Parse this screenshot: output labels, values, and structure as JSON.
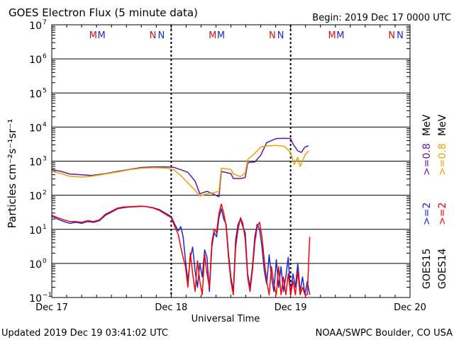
{
  "title": "GOES Electron Flux (5 minute data)",
  "begin_label": "Begin: 2019 Dec 17 0000 UTC",
  "updated_label": "Updated 2019 Dec 19 03:41:02 UTC",
  "credit": "NOAA/SWPC Boulder, CO USA",
  "colors": {
    "purple": "#5a1aa0",
    "orange": "#f0a000",
    "blue": "#1c28c8",
    "red": "#ff0000",
    "mm_red": "#d01010",
    "mm_blue": "#1c28c8"
  },
  "chart_data": {
    "type": "line",
    "xlabel": "Universal Time",
    "ylabel": "Particles cm⁻²s⁻¹sr⁻¹",
    "x_unit": "days since Dec 17 0000 UTC",
    "xlim": [
      0,
      3
    ],
    "ylim_log10": [
      -1,
      7
    ],
    "y_scale": "log",
    "x_ticks": [
      {
        "x": 0,
        "label": "Dec 17"
      },
      {
        "x": 1,
        "label": "Dec 18"
      },
      {
        "x": 2,
        "label": "Dec 19"
      },
      {
        "x": 3,
        "label": "Dec 20"
      }
    ],
    "y_ticks": [
      {
        "exp": -1,
        "label": "10",
        "sup": "−1"
      },
      {
        "exp": 0,
        "label": "10",
        "sup": "0"
      },
      {
        "exp": 1,
        "label": "10",
        "sup": "1"
      },
      {
        "exp": 2,
        "label": "10",
        "sup": "2"
      },
      {
        "exp": 3,
        "label": "10",
        "sup": "3"
      },
      {
        "exp": 4,
        "label": "10",
        "sup": "4"
      },
      {
        "exp": 5,
        "label": "10",
        "sup": "5"
      },
      {
        "exp": 6,
        "label": "10",
        "sup": "6"
      },
      {
        "exp": 7,
        "label": "10",
        "sup": "7"
      }
    ],
    "threshold_y": 1000,
    "markers": [
      {
        "text": "M",
        "x": 0.43,
        "color": "mm_red"
      },
      {
        "text": "M",
        "x": 0.5,
        "color": "mm_blue"
      },
      {
        "text": "N",
        "x": 0.93,
        "color": "mm_red"
      },
      {
        "text": "N",
        "x": 1.0,
        "color": "mm_blue"
      },
      {
        "text": "M",
        "x": 1.43,
        "color": "mm_red"
      },
      {
        "text": "M",
        "x": 1.5,
        "color": "mm_blue"
      },
      {
        "text": "N",
        "x": 1.93,
        "color": "mm_red"
      },
      {
        "text": "N",
        "x": 2.0,
        "color": "mm_blue"
      },
      {
        "text": "M",
        "x": 2.43,
        "color": "mm_red"
      },
      {
        "text": "M",
        "x": 2.5,
        "color": "mm_blue"
      },
      {
        "text": "N",
        "x": 2.93,
        "color": "mm_red"
      },
      {
        "text": "N",
        "x": 3.0,
        "color": "mm_blue"
      }
    ],
    "day_boundaries": [
      1,
      2
    ],
    "legend_right": [
      {
        "prefix": "GOES15",
        "label": ">=2",
        "color": "blue"
      },
      {
        "prefix": "",
        "label": ">=0.8 MeV",
        "color": "purple"
      },
      {
        "prefix": "GOES14",
        "label": ">=2",
        "color": "red"
      },
      {
        "prefix": "",
        "label": ">=0.8 MeV",
        "color": "orange"
      }
    ],
    "legend_text": {
      "g15": "GOES15",
      "g14": "GOES14",
      "g15_hi": ">=2",
      "g15_lo": ">=0.8",
      "g14_hi": ">=2",
      "g14_lo": ">=0.8",
      "mev": "MeV"
    },
    "series": [
      {
        "name": "GOES15 >=0.8 MeV",
        "color": "purple",
        "x": [
          0,
          0.08,
          0.15,
          0.25,
          0.33,
          0.45,
          0.55,
          0.65,
          0.75,
          0.85,
          0.95,
          1.02,
          1.08,
          1.14,
          1.2,
          1.24,
          1.3,
          1.36,
          1.4,
          1.42,
          1.5,
          1.52,
          1.58,
          1.62,
          1.64,
          1.7,
          1.75,
          1.8,
          1.88,
          1.95,
          2.0,
          2.02,
          2.06,
          2.09,
          2.12,
          2.15
        ],
        "y": [
          560,
          500,
          420,
          400,
          380,
          430,
          500,
          570,
          650,
          680,
          680,
          660,
          560,
          470,
          260,
          110,
          130,
          105,
          90,
          500,
          430,
          310,
          310,
          330,
          900,
          950,
          1500,
          3500,
          4600,
          4700,
          4600,
          3200,
          2000,
          1800,
          2600,
          2800
        ]
      },
      {
        "name": "GOES14 >=0.8 MeV",
        "color": "orange",
        "x": [
          0,
          0.08,
          0.15,
          0.25,
          0.33,
          0.45,
          0.55,
          0.65,
          0.75,
          0.85,
          0.95,
          1.02,
          1.08,
          1.14,
          1.2,
          1.24,
          1.3,
          1.36,
          1.4,
          1.42,
          1.5,
          1.52,
          1.58,
          1.62,
          1.64,
          1.7,
          1.75,
          1.8,
          1.88,
          1.95,
          2.0,
          2.03,
          2.06,
          2.08,
          2.12,
          2.15
        ],
        "y": [
          500,
          430,
          360,
          340,
          360,
          420,
          480,
          560,
          620,
          640,
          630,
          560,
          380,
          230,
          140,
          95,
          110,
          120,
          130,
          620,
          570,
          420,
          350,
          450,
          1100,
          1700,
          2600,
          2800,
          2900,
          2700,
          1800,
          800,
          1300,
          700,
          1500,
          2000
        ]
      },
      {
        "name": "GOES15 >=2 MeV",
        "color": "blue",
        "x": [
          0,
          0.05,
          0.1,
          0.15,
          0.2,
          0.25,
          0.3,
          0.35,
          0.4,
          0.45,
          0.5,
          0.55,
          0.6,
          0.65,
          0.7,
          0.75,
          0.8,
          0.85,
          0.9,
          0.95,
          1.0,
          1.03,
          1.06,
          1.08,
          1.1,
          1.12,
          1.14,
          1.16,
          1.18,
          1.2,
          1.22,
          1.24,
          1.26,
          1.28,
          1.3,
          1.32,
          1.34,
          1.36,
          1.38,
          1.4,
          1.42,
          1.44,
          1.46,
          1.48,
          1.5,
          1.52,
          1.54,
          1.56,
          1.58,
          1.6,
          1.62,
          1.64,
          1.66,
          1.68,
          1.7,
          1.72,
          1.74,
          1.76,
          1.78,
          1.8,
          1.82,
          1.84,
          1.86,
          1.88,
          1.9,
          1.92,
          1.94,
          1.96,
          1.98,
          2.0,
          2.02,
          2.04,
          2.06,
          2.08,
          2.1,
          2.12,
          2.14,
          2.16
        ],
        "y": [
          24,
          20,
          17,
          15,
          16,
          15,
          17,
          16,
          18,
          26,
          32,
          40,
          43,
          45,
          46,
          47,
          46,
          43,
          38,
          30,
          24,
          14,
          9,
          12,
          6,
          1.2,
          0.3,
          1.5,
          3,
          0.6,
          0.2,
          1.0,
          0.4,
          2.5,
          1.5,
          0.15,
          3,
          8,
          6,
          22,
          40,
          20,
          14,
          2,
          0.4,
          0.15,
          5,
          14,
          20,
          12,
          8,
          0.5,
          0.2,
          0.8,
          6,
          14,
          10,
          3,
          0.6,
          0.25,
          1.8,
          0.4,
          0.15,
          1.3,
          0.2,
          0.8,
          0.15,
          0.4,
          1.5,
          0.12,
          0.5,
          0.2,
          1.0,
          0.15,
          0.4,
          0.12,
          0.3,
          0.12
        ]
      },
      {
        "name": "GOES14 >=2 MeV",
        "color": "red",
        "x": [
          0,
          0.05,
          0.1,
          0.15,
          0.2,
          0.25,
          0.3,
          0.35,
          0.4,
          0.45,
          0.5,
          0.55,
          0.6,
          0.65,
          0.7,
          0.75,
          0.8,
          0.85,
          0.9,
          0.95,
          1.0,
          1.03,
          1.06,
          1.08,
          1.1,
          1.12,
          1.14,
          1.16,
          1.18,
          1.2,
          1.22,
          1.24,
          1.26,
          1.28,
          1.3,
          1.32,
          1.34,
          1.36,
          1.38,
          1.4,
          1.42,
          1.44,
          1.46,
          1.48,
          1.5,
          1.52,
          1.54,
          1.56,
          1.58,
          1.6,
          1.62,
          1.64,
          1.66,
          1.68,
          1.7,
          1.72,
          1.74,
          1.76,
          1.78,
          1.8,
          1.82,
          1.84,
          1.86,
          1.88,
          1.9,
          1.92,
          1.94,
          1.96,
          1.98,
          2.0,
          2.02,
          2.04,
          2.06,
          2.08,
          2.1,
          2.12,
          2.14,
          2.16
        ],
        "y": [
          26,
          22,
          19,
          17,
          17,
          16,
          18,
          17,
          19,
          28,
          34,
          42,
          45,
          46,
          47,
          48,
          46,
          42,
          36,
          28,
          22,
          12,
          7,
          3,
          1.5,
          0.8,
          0.2,
          2,
          0.5,
          0.15,
          1.2,
          0.3,
          0.12,
          1.8,
          0.5,
          0.2,
          4,
          10,
          8,
          30,
          55,
          30,
          12,
          1.5,
          0.3,
          0.12,
          3,
          10,
          22,
          15,
          5,
          0.4,
          0.15,
          0.6,
          4,
          12,
          16,
          6,
          1.2,
          0.3,
          0.12,
          0.8,
          0.25,
          0.12,
          0.8,
          0.12,
          0.4,
          0.12,
          0.5,
          0.12,
          0.3,
          0.12,
          0.6,
          0.12,
          0.2,
          0.12,
          0.12,
          6
        ]
      }
    ]
  }
}
